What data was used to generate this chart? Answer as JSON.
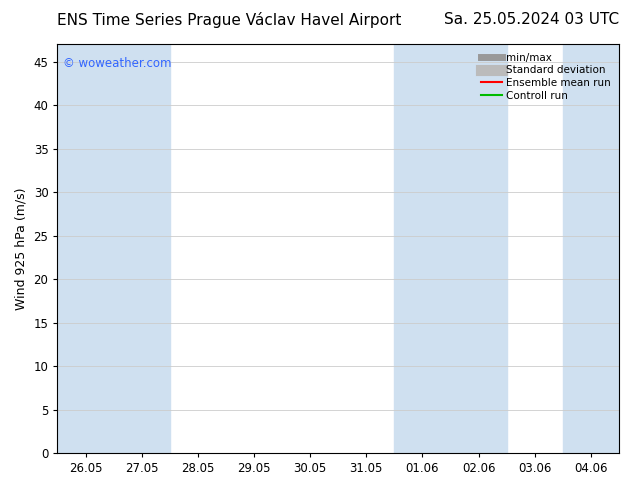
{
  "title_left": "ENS Time Series Prague Václav Havel Airport",
  "title_right": "Sa. 25.05.2024 03 UTC",
  "ylabel": "Wind 925 hPa (m/s)",
  "watermark": "© woweather.com",
  "ylim": [
    0,
    47
  ],
  "yticks": [
    0,
    5,
    10,
    15,
    20,
    25,
    30,
    35,
    40,
    45
  ],
  "xtick_labels": [
    "26.05",
    "27.05",
    "28.05",
    "29.05",
    "30.05",
    "31.05",
    "01.06",
    "02.06",
    "03.06",
    "04.06"
  ],
  "shade_color": "#cfe0f0",
  "background_color": "#ffffff",
  "legend_items": [
    {
      "label": "min/max",
      "color": "#999999",
      "lw": 5,
      "style": "solid"
    },
    {
      "label": "Standard deviation",
      "color": "#bbbbbb",
      "lw": 8,
      "style": "solid"
    },
    {
      "label": "Ensemble mean run",
      "color": "#ff0000",
      "lw": 1.5,
      "style": "solid"
    },
    {
      "label": "Controll run",
      "color": "#00bb00",
      "lw": 1.5,
      "style": "solid"
    }
  ],
  "title_fontsize": 11,
  "axis_fontsize": 9,
  "tick_fontsize": 8.5,
  "watermark_color": "#3366ff",
  "grid_color": "#cccccc",
  "spine_color": "#000000"
}
